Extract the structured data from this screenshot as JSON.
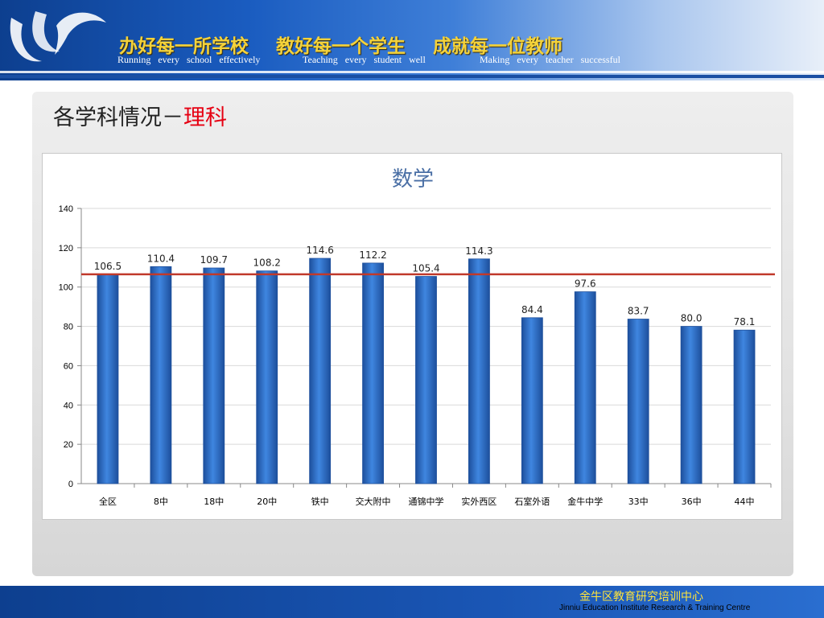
{
  "header": {
    "slogans": [
      {
        "cn": "办好每一所学校",
        "en": "Running every school effectively"
      },
      {
        "cn": "教好每一个学生",
        "en": "Teaching every student well"
      },
      {
        "cn": "成就每一位教师",
        "en": "Making every teacher successful"
      }
    ]
  },
  "section": {
    "title_prefix": "各学科情况－",
    "title_accent": "理科"
  },
  "chart_data": {
    "type": "bar",
    "title": "数学",
    "categories": [
      "全区",
      "8中",
      "18中",
      "20中",
      "铁中",
      "交大附中",
      "通锦中学",
      "实外西区",
      "石室外语",
      "金牛中学",
      "33中",
      "36中",
      "44中"
    ],
    "values": [
      106.5,
      110.4,
      109.7,
      108.2,
      114.6,
      112.2,
      105.4,
      114.3,
      84.4,
      97.6,
      83.7,
      80.0,
      78.1
    ],
    "value_labels": [
      "106.5",
      "110.4",
      "109.7",
      "108.2",
      "114.6",
      "112.2",
      "105.4",
      "114.3",
      "84.4",
      "97.6",
      "83.7",
      "80.0",
      "78.1"
    ],
    "yticks": [
      0,
      20,
      40,
      60,
      80,
      100,
      120,
      140
    ],
    "ylim": [
      0,
      140
    ],
    "reference_line": 106.5,
    "grid": true,
    "colors": {
      "bar": "#2f6fc9",
      "bar_dark": "#1d4f9c",
      "reference": "#c0392b",
      "grid": "#d9d9d9",
      "title": "#4a6fa5"
    }
  },
  "footer": {
    "org_cn": "金牛区教育研究培训中心",
    "org_en": "Jinniu Education Institute Research & Training Centre"
  }
}
